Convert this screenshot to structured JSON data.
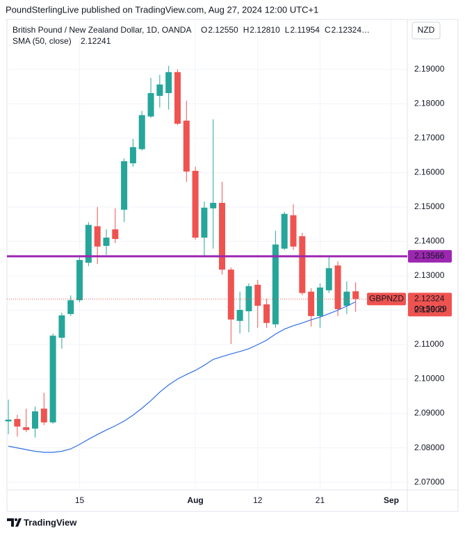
{
  "chart_data": {
    "type": "candlestick",
    "source": "PoundSterlingLive published on TradingView.com, Aug 27, 2024 12:00 UTC+1",
    "title": "British Pound / New Zealand Dollar, 1D, OANDA",
    "currency": "NZD",
    "brand": "TradingView",
    "ohlc_legend": [
      {
        "key": "O",
        "label": "2.12550"
      },
      {
        "key": "H",
        "label": "2.12810"
      },
      {
        "key": "L",
        "label": "2.11954"
      },
      {
        "key": "C",
        "label": "2.12324…"
      }
    ],
    "categories": [
      null,
      null,
      null,
      null,
      null,
      null,
      null,
      null,
      "15",
      null,
      null,
      null,
      null,
      null,
      null,
      null,
      null,
      null,
      null,
      null,
      null,
      "Aug",
      null,
      null,
      null,
      null,
      null,
      null,
      "12",
      null,
      null,
      null,
      null,
      null,
      null,
      "21",
      null,
      null,
      null,
      null
    ],
    "open": [
      2.0877,
      2.0884,
      2.086,
      2.0856,
      2.0914,
      2.0874,
      2.112,
      2.1189,
      2.1229,
      2.1338,
      2.1444,
      2.1387,
      2.1435,
      2.1492,
      2.1627,
      2.1668,
      2.1763,
      2.1823,
      2.1831,
      2.1892,
      2.1751,
      2.1605,
      2.1411,
      2.1496,
      2.1512,
      2.1318,
      2.1169,
      2.1197,
      2.1274,
      2.1217,
      2.1159,
      2.1379,
      2.1476,
      2.1415,
      2.1254,
      2.1183,
      2.1258,
      2.133,
      2.1213,
      2.1255
    ],
    "high": [
      2.094,
      2.0896,
      2.0914,
      2.092,
      2.096,
      2.1132,
      2.1193,
      2.1243,
      2.1359,
      2.1456,
      2.15,
      2.1435,
      2.1496,
      2.1641,
      2.1698,
      2.1779,
      2.1875,
      2.1884,
      2.191,
      2.19,
      2.1809,
      2.1617,
      2.1516,
      2.1755,
      2.1573,
      2.1324,
      2.1254,
      2.1278,
      2.1288,
      2.1233,
      2.1431,
      2.1486,
      2.1508,
      2.1425,
      2.1264,
      2.1278,
      2.1355,
      2.1342,
      2.1284,
      2.1281
    ],
    "low": [
      2.084,
      2.0833,
      2.0846,
      2.083,
      2.0866,
      2.087,
      2.1088,
      2.1183,
      2.1223,
      2.1328,
      2.1334,
      2.1361,
      2.1395,
      2.1456,
      2.1617,
      2.1664,
      2.1759,
      2.1789,
      2.1783,
      2.1738,
      2.1573,
      2.1405,
      2.1359,
      2.1379,
      2.1304,
      2.1102,
      2.1132,
      2.1136,
      2.1149,
      2.1149,
      2.1149,
      2.1375,
      2.1375,
      2.1244,
      2.1153,
      2.1149,
      2.125,
      2.1183,
      2.1189,
      2.11954
    ],
    "close": [
      2.0882,
      2.0862,
      2.0852,
      2.0906,
      2.0874,
      2.1126,
      2.1185,
      2.1229,
      2.1346,
      2.1448,
      2.1385,
      2.1411,
      2.1407,
      2.1633,
      2.1674,
      2.1767,
      2.1831,
      2.1856,
      2.1892,
      2.1742,
      2.1603,
      2.1411,
      2.1498,
      2.1512,
      2.1318,
      2.1173,
      2.1201,
      2.127,
      2.1213,
      2.1163,
      2.1391,
      2.148,
      2.1385,
      2.125,
      2.1183,
      2.1266,
      2.1322,
      2.1203,
      2.1254,
      2.12324
    ],
    "up_color": "#26a69a",
    "down_color": "#ef5350",
    "series": [
      {
        "name": "SMA (50, close)",
        "color": "#2f6fe4",
        "value_label": "2.12241",
        "values": [
          2.0805,
          2.08,
          2.0795,
          2.079,
          2.0787,
          2.0787,
          2.079,
          2.0797,
          2.081,
          2.0825,
          2.0839,
          2.0852,
          2.0864,
          2.0878,
          2.0895,
          2.0915,
          2.0937,
          2.0962,
          2.0983,
          2.1,
          2.1013,
          2.1025,
          2.104,
          2.1057,
          2.1065,
          2.1073,
          2.108,
          2.1088,
          2.11,
          2.1113,
          2.1131,
          2.1145,
          2.1155,
          2.1163,
          2.1172,
          2.118,
          2.119,
          2.12,
          2.1212,
          2.12241
        ]
      }
    ],
    "hline": {
      "value": 2.13566,
      "label": "2.13566",
      "color": "#9c27b0"
    },
    "last_price": {
      "symbol": "GBPNZD",
      "label": "2.12324",
      "countdown": "09:59:29"
    },
    "ylim": [
      2.0678,
      2.2045
    ],
    "yticks": [
      {
        "value": 2.07,
        "label": "2.07000"
      },
      {
        "value": 2.08,
        "label": "2.08000"
      },
      {
        "value": 2.09,
        "label": "2.09000"
      },
      {
        "value": 2.1,
        "label": "2.10000"
      },
      {
        "value": 2.11,
        "label": "2.11000"
      },
      {
        "value": 2.12,
        "label": "2.12000"
      },
      {
        "value": 2.13,
        "label": "2.13000"
      },
      {
        "value": 2.14,
        "label": "2.14000"
      },
      {
        "value": 2.15,
        "label": "2.15000"
      },
      {
        "value": 2.16,
        "label": "2.16000"
      },
      {
        "value": 2.17,
        "label": "2.17000"
      },
      {
        "value": 2.18,
        "label": "2.18000"
      },
      {
        "value": 2.19,
        "label": "2.19000"
      }
    ],
    "xlim": [
      -0.16,
      44.8
    ],
    "xticks": [
      {
        "value": 8,
        "label": "15"
      },
      {
        "value": 21,
        "label": "Aug"
      },
      {
        "value": 28,
        "label": "12"
      },
      {
        "value": 35,
        "label": "21"
      },
      {
        "value": 43,
        "label": "Sep"
      }
    ],
    "grid": true
  }
}
